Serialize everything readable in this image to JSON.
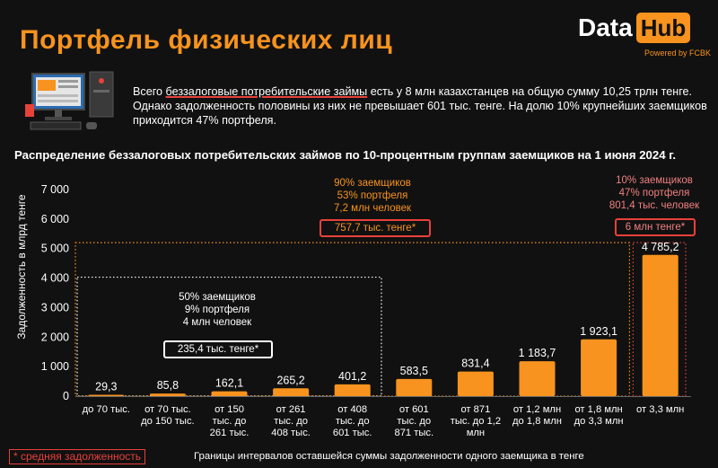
{
  "title": "Портфель физических лиц",
  "logo": {
    "data": "Data",
    "hub": "Hub",
    "powered": "Powered by FCBK"
  },
  "intro": {
    "pre": "Всего ",
    "highlight": "беззалоговые потребительские займы",
    "post": " есть у 8 млн казахстанцев на общую сумму 10,25 трлн тенге. Однако задолженность половины из них не превышает 601 тыс. тенге. На долю 10% крупнейших заемщиков приходится 47% портфеля."
  },
  "chart_data": {
    "type": "bar",
    "title": "Распределение беззалоговых потребительских займов по 10-процентным группам заемщиков на 1 июня 2024 г.",
    "ylabel": "Задолженность в млрд тенге",
    "xlabel": "Границы интервалов оставшейся суммы задолженности одного заемщика в тенге",
    "ylim": [
      0,
      7000
    ],
    "yticks": [
      "0",
      "1 000",
      "2 000",
      "3 000",
      "4 000",
      "5 000",
      "6 000",
      "7 000"
    ],
    "categories": [
      [
        "до 70 тыс."
      ],
      [
        "от 70 тыс.",
        "до 150 тыс."
      ],
      [
        "от 150",
        "тыс. до",
        "261 тыс."
      ],
      [
        "от 261",
        "тыс. до",
        "408 тыс."
      ],
      [
        "от 408",
        "тыс. до",
        "601 тыс."
      ],
      [
        "от 601",
        "тыс. до",
        "871 тыс."
      ],
      [
        "от 871",
        "тыс. до 1,2",
        "млн"
      ],
      [
        "от 1,2 млн",
        "до 1,8 млн"
      ],
      [
        "от 1,8 млн",
        "до 3,3 млн"
      ],
      [
        "от 3,3 млн"
      ]
    ],
    "values": [
      29.3,
      85.8,
      162.1,
      265.2,
      401.2,
      583.5,
      831.4,
      1183.7,
      1923.1,
      4785.2
    ],
    "labels": [
      "29,3",
      "85,8",
      "162,1",
      "265,2",
      "401,2",
      "583,5",
      "831,4",
      "1 183,7",
      "1 923,1",
      "4 785,2"
    ],
    "bar_color": "#f7931e",
    "grid": false
  },
  "annotations": {
    "group50": {
      "lines": [
        "50% заемщиков",
        "9% портфеля",
        "4 млн человек"
      ],
      "avg": "235,4 тыс. тенге*"
    },
    "group90": {
      "lines": [
        "90% заемщиков",
        "53% портфеля",
        "7,2 млн человек"
      ],
      "avg": "757,7 тыс. тенге*"
    },
    "group10": {
      "lines": [
        "10% заемщиков",
        "47% портфеля",
        "801,4 тыс. человек"
      ],
      "avg": "6 млн тенге*"
    }
  },
  "footnote": "* средняя задолженность",
  "colors": {
    "accent": "#f7931e",
    "red": "#e8413a",
    "salmon": "#f08080"
  }
}
